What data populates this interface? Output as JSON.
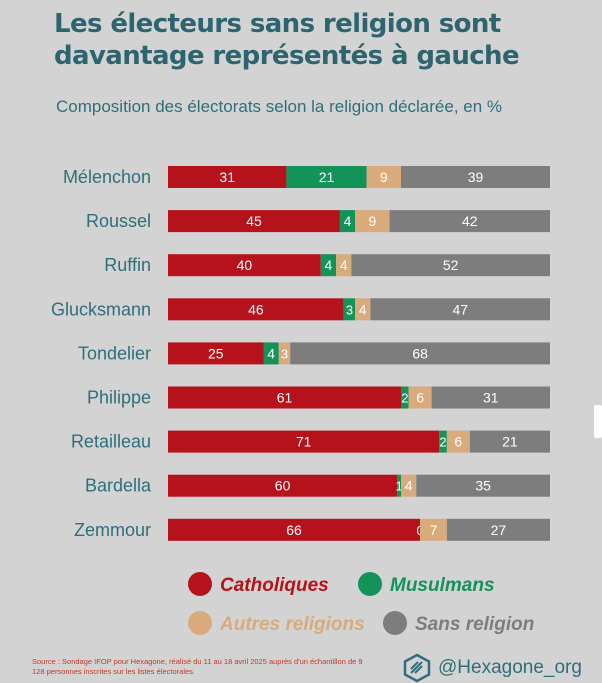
{
  "title": "Les électeurs sans religion sont davantage représentés à gauche",
  "subtitle": "Composition des électorats selon la religion déclarée, en %",
  "chart_data": {
    "type": "bar",
    "stacked": true,
    "orientation": "horizontal",
    "categories": [
      "Mélenchon",
      "Roussel",
      "Ruffin",
      "Glucksmann",
      "Tondelier",
      "Philippe",
      "Retailleau",
      "Bardella",
      "Zemmour"
    ],
    "series": [
      {
        "name": "Catholiques",
        "color": "#b5121b",
        "values": [
          31,
          45,
          40,
          46,
          25,
          61,
          71,
          60,
          66
        ]
      },
      {
        "name": "Musulmans",
        "color": "#13925a",
        "values": [
          21,
          4,
          4,
          3,
          4,
          2,
          2,
          1,
          0
        ]
      },
      {
        "name": "Autres religions",
        "color": "#d9aa7c",
        "values": [
          9,
          9,
          4,
          4,
          3,
          6,
          6,
          4,
          7
        ]
      },
      {
        "name": "Sans religion",
        "color": "#7d7d7d",
        "values": [
          39,
          42,
          52,
          47,
          68,
          31,
          21,
          35,
          27
        ]
      }
    ],
    "xlim": [
      0,
      100
    ],
    "legend_position": "bottom"
  },
  "footer": {
    "source": "Source : Sondage IFOP pour Hexagone, réalisé du 11 au 18 avril 2025 auprès d'un échantillon de 9 128 personnes inscrites sur les listes électorales.",
    "brand": "@Hexagone_org"
  }
}
